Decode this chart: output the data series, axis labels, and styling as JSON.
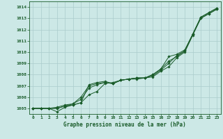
{
  "title": "Graphe pression niveau de la mer (hPa)",
  "background_color": "#cce8e6",
  "plot_bg_color": "#cce8e6",
  "grid_color": "#aacccc",
  "line_color": "#1a5c2a",
  "xlim": [
    -0.5,
    23.5
  ],
  "ylim": [
    1004.5,
    1014.5
  ],
  "xticks": [
    0,
    1,
    2,
    3,
    4,
    5,
    6,
    7,
    8,
    9,
    10,
    11,
    12,
    13,
    14,
    15,
    16,
    17,
    18,
    19,
    20,
    21,
    22,
    23
  ],
  "yticks": [
    1005,
    1006,
    1007,
    1008,
    1009,
    1010,
    1011,
    1012,
    1013,
    1014
  ],
  "series": [
    [
      1005.0,
      1005.0,
      1005.0,
      1005.0,
      1005.2,
      1005.3,
      1005.5,
      1007.1,
      1007.3,
      1007.4,
      1007.2,
      1007.5,
      1007.6,
      1007.6,
      1007.7,
      1007.8,
      1008.3,
      1008.7,
      1009.5,
      1010.0,
      1011.5,
      1013.0,
      1013.4,
      1013.8
    ],
    [
      1005.0,
      1005.0,
      1005.0,
      1005.1,
      1005.3,
      1005.4,
      1006.0,
      1007.0,
      1007.2,
      1007.3,
      1007.2,
      1007.5,
      1007.6,
      1007.7,
      1007.7,
      1007.9,
      1008.4,
      1009.0,
      1009.7,
      1010.1,
      1011.6,
      1013.1,
      1013.5,
      1013.9
    ],
    [
      1005.0,
      1005.0,
      1005.0,
      1004.7,
      1005.1,
      1005.3,
      1005.5,
      1006.2,
      1006.5,
      1007.2,
      1007.3,
      1007.5,
      1007.6,
      1007.7,
      1007.7,
      1008.0,
      1008.5,
      1009.6,
      1009.8,
      1010.2,
      1011.6,
      1013.0,
      1013.4,
      1013.8
    ],
    [
      1005.0,
      1005.0,
      1005.0,
      1005.0,
      1005.2,
      1005.4,
      1005.8,
      1006.8,
      1007.1,
      1007.3,
      1007.2,
      1007.5,
      1007.6,
      1007.7,
      1007.7,
      1008.0,
      1008.5,
      1009.2,
      1009.6,
      1010.1,
      1011.6,
      1013.1,
      1013.5,
      1013.9
    ]
  ]
}
